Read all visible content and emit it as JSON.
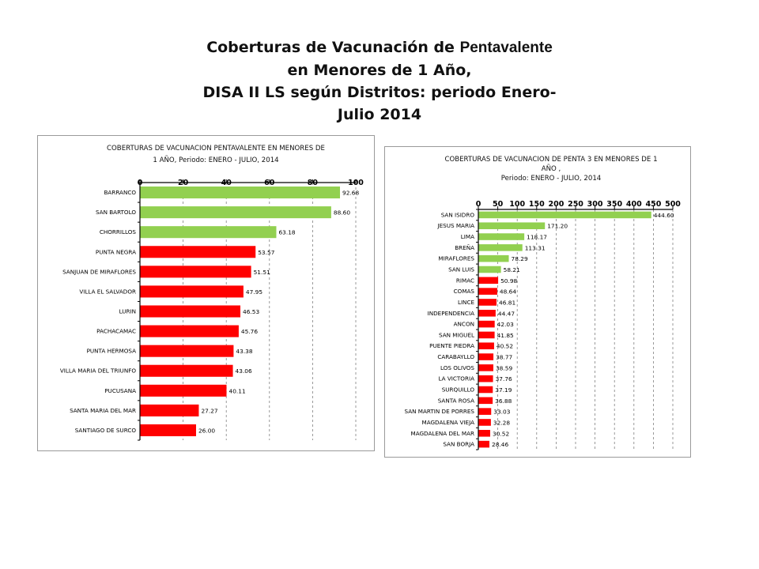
{
  "slide_title": {
    "line1_a": "Coberturas de Vacunación de ",
    "line1_b": "Pentavalente",
    "line2": "en Menores de 1 Año,",
    "line3": "DISA II LS según  Distritos: periodo Enero-",
    "line4": "Julio 2014"
  },
  "colors": {
    "green": "#92d050",
    "red": "#ff0000",
    "grid": "#808080",
    "border": "#9a9a9a"
  },
  "chart_data": [
    {
      "type": "bar",
      "orientation": "horizontal",
      "title_lines": [
        "COBERTURAS  DE VACUNACION PENTAVALENTE EN MENORES DE",
        "1 AÑO, Periodo: ENERO  - JULIO, 2014"
      ],
      "xlim": [
        0,
        100
      ],
      "ticks": [
        "0",
        "20",
        "40",
        "60",
        "80",
        "100"
      ],
      "tick_values": [
        0,
        20,
        40,
        60,
        80,
        100
      ],
      "grid": true,
      "categories": [
        "BARRANCO",
        "SAN BARTOLO",
        "CHORRILLOS",
        "PUNTA NEGRA",
        "SANJUAN DE MIRAFLORES",
        "VILLA EL SALVADOR",
        "LURIN",
        "PACHACAMAC",
        "PUNTA HERMOSA",
        "VILLA MARIA DEL TRIUNFO",
        "PUCUSANA",
        "SANTA MARIA DEL MAR",
        "SANTIAGO DE SURCO"
      ],
      "values": [
        92.68,
        88.6,
        63.18,
        53.57,
        51.51,
        47.95,
        46.53,
        45.76,
        43.38,
        43.06,
        40.11,
        27.27,
        26.0
      ],
      "labels": [
        "92.68",
        "88.60",
        "63.18",
        "53.57",
        "51.51",
        "47.95",
        "46.53",
        "45.76",
        "43.38",
        "43.06",
        "40.11",
        "27.27",
        "26.00"
      ],
      "bar_colors": [
        "green",
        "green",
        "green",
        "red",
        "red",
        "red",
        "red",
        "red",
        "red",
        "red",
        "red",
        "red",
        "red"
      ]
    },
    {
      "type": "bar",
      "orientation": "horizontal",
      "title_lines": [
        "COBERTURAS DE VACUNACION DE PENTA 3 EN MENORES DE 1",
        "AÑO ,",
        "Periodo:  ENERO - JULIO, 2014"
      ],
      "xlim": [
        0,
        500
      ],
      "ticks": [
        "0",
        "50",
        "100",
        "150",
        "200",
        "250",
        "300",
        "350",
        "400",
        "450",
        "500"
      ],
      "tick_values": [
        0,
        50,
        100,
        150,
        200,
        250,
        300,
        350,
        400,
        450,
        500
      ],
      "grid": true,
      "categories": [
        "SAN ISIDRO",
        "JESUS MARIA",
        "LIMA",
        "BREÑA",
        "MIRAFLORES",
        "SAN LUIS",
        "RIMAC",
        "COMAS",
        "LINCE",
        "INDEPENDENCIA",
        "ANCON",
        "SAN MIGUEL",
        "PUENTE PIEDRA",
        "CARABAYLLO",
        "LOS OLIVOS",
        "LA VICTORIA",
        "SURQUILLO",
        "SANTA ROSA",
        "SAN MARTIN DE PORRES",
        "MAGDALENA VIEJA",
        "MAGDALENA DEL MAR",
        "SAN BORJA"
      ],
      "values": [
        444.6,
        171.2,
        118.17,
        113.31,
        78.29,
        58.21,
        50.98,
        48.64,
        46.81,
        44.47,
        42.03,
        41.85,
        40.52,
        38.77,
        38.59,
        37.76,
        37.19,
        36.88,
        33.03,
        32.28,
        30.52,
        28.46
      ],
      "labels": [
        "444.60",
        "171.20",
        "118.17",
        "113.31",
        "78.29",
        "58.21",
        "50.98",
        "48.64",
        "46.81",
        "44.47",
        "42.03",
        "41.85",
        "40.52",
        "38.77",
        "38.59",
        "37.76",
        "37.19",
        "36.88",
        "33.03",
        "32.28",
        "30.52",
        "28.46"
      ],
      "bar_colors": [
        "green",
        "green",
        "green",
        "green",
        "green",
        "green",
        "red",
        "red",
        "red",
        "red",
        "red",
        "red",
        "red",
        "red",
        "red",
        "red",
        "red",
        "red",
        "red",
        "red",
        "red",
        "red"
      ]
    }
  ]
}
